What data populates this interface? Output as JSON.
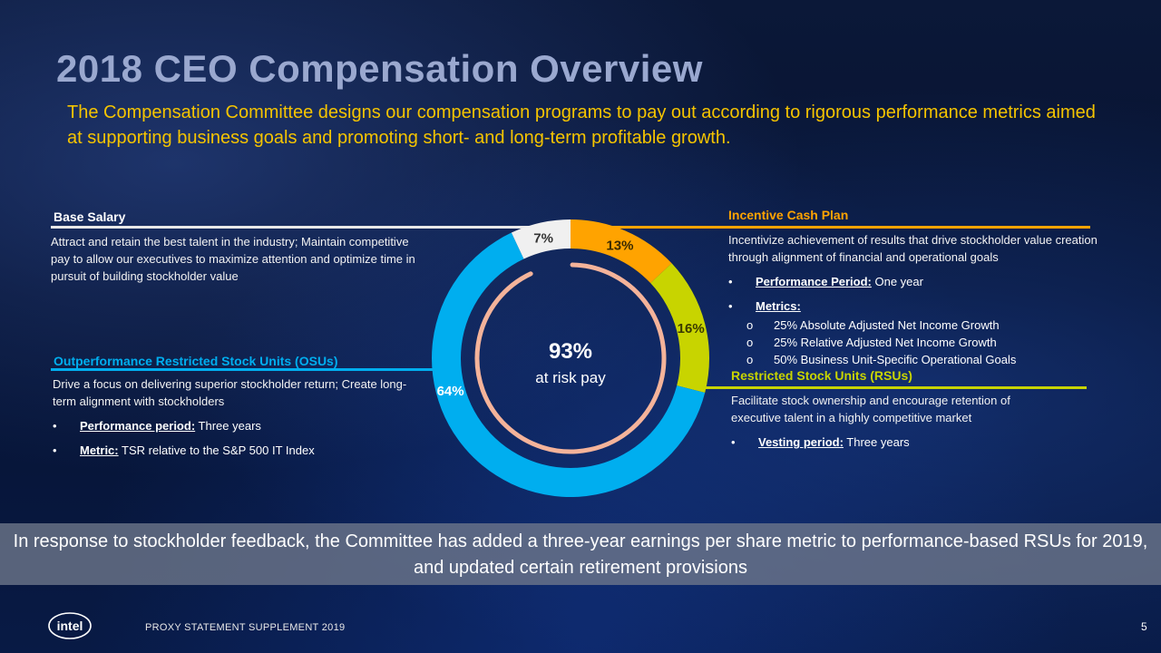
{
  "title": "2018 CEO Compensation Overview",
  "subtitle": "The Compensation Committee designs our compensation programs to pay out according to rigorous performance metrics aimed at supporting business goals and promoting short- and long-term profitable growth.",
  "base_salary": {
    "heading": "Base Salary",
    "text": "Attract and retain the best talent in the industry; Maintain competitive pay to allow our executives to maximize attention and optimize time in pursuit of building stockholder value"
  },
  "osu": {
    "heading": "Outperformance Restricted Stock Units (OSUs)",
    "text": "Drive a focus on delivering superior stockholder return; Create long-term alignment with stockholders",
    "bullets": [
      {
        "label": "Performance period:",
        "value": " Three years"
      },
      {
        "label": "Metric:",
        "value": " TSR relative to the S&P 500 IT Index"
      }
    ]
  },
  "icp": {
    "heading": "Incentive Cash Plan",
    "text": "Incentivize achievement of results that drive stockholder value creation through alignment of financial and operational goals",
    "bullets": [
      {
        "label": "Performance Period:",
        "value": " One year"
      },
      {
        "label": "Metrics:",
        "value": ""
      }
    ],
    "metrics": [
      "25% Absolute Adjusted Net Income Growth",
      "25% Relative Adjusted Net Income Growth",
      "50% Business Unit-Specific Operational Goals"
    ]
  },
  "rsu": {
    "heading": "Restricted Stock Units (RSUs)",
    "text": "Facilitate stock ownership and encourage retention of executive talent in a highly competitive market",
    "bullets": [
      {
        "label": "Vesting period:",
        "value": " Three years"
      }
    ]
  },
  "banner": "In response to stockholder feedback, the Committee has added a three-year earnings per share metric to performance-based RSUs for 2019, and updated certain retirement provisions",
  "footer": "PROXY STATEMENT SUPPLEMENT 2019",
  "page_number": "5",
  "logo_text": "intel",
  "colors": {
    "title": "#9aa8cf",
    "subtitle": "#f5c400",
    "base_salary": "#eeeeee",
    "incentive_cash": "#ffa300",
    "rsu": "#c8d400",
    "osu": "#00aeef",
    "inner_arc": "#f4b39a"
  },
  "chart_data": {
    "type": "pie",
    "style": "donut",
    "series": [
      {
        "name": "Incentive Cash Plan",
        "value": 13,
        "label": "13%",
        "color": "#ffa300",
        "label_color": "#3a2a00"
      },
      {
        "name": "Restricted Stock Units (RSUs)",
        "value": 16,
        "label": "16%",
        "color": "#c8d400",
        "label_color": "#3a3a00"
      },
      {
        "name": "Outperformance Restricted Stock Units (OSUs)",
        "value": 64,
        "label": "64%",
        "color": "#00aeef",
        "label_color": "#ffffff"
      },
      {
        "name": "Base Salary",
        "value": 7,
        "label": "7%",
        "color": "#f0f0f0",
        "label_color": "#333333"
      }
    ],
    "center_value": "93%",
    "center_label": "at risk pay",
    "at_risk_percent": 93
  }
}
